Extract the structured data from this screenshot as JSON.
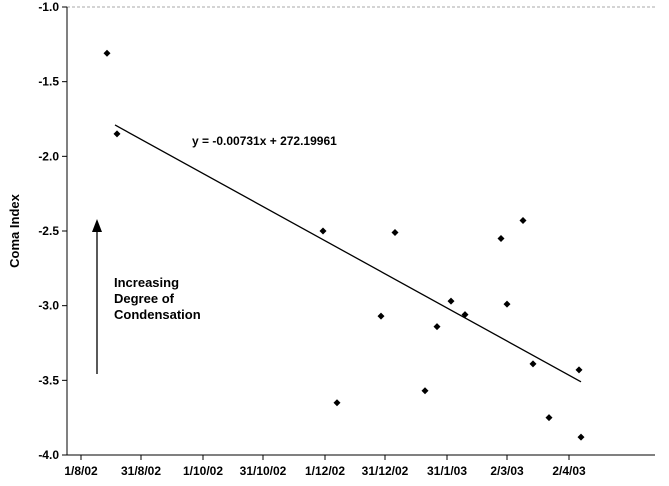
{
  "chart_data": {
    "type": "scatter",
    "ylabel": "Coma Index",
    "xlabel": "",
    "title": "",
    "ylim": [
      -4.0,
      -1.0
    ],
    "y_ticks": [
      "-1.0",
      "-1.5",
      "-2.0",
      "-2.5",
      "-3.0",
      "-3.5",
      "-4.0"
    ],
    "x_tick_labels": [
      "1/8/02",
      "31/8/02",
      "1/10/02",
      "31/10/02",
      "1/12/02",
      "31/12/02",
      "31/1/03",
      "2/3/03",
      "2/4/03"
    ],
    "grid": false,
    "points": [
      {
        "x": "2002-08-14",
        "y": -1.31
      },
      {
        "x": "2002-08-19",
        "y": -1.85
      },
      {
        "x": "2002-11-30",
        "y": -2.5
      },
      {
        "x": "2002-12-07",
        "y": -3.65
      },
      {
        "x": "2002-12-29",
        "y": -3.07
      },
      {
        "x": "2003-01-05",
        "y": -2.51
      },
      {
        "x": "2003-01-20",
        "y": -3.57
      },
      {
        "x": "2003-01-26",
        "y": -3.14
      },
      {
        "x": "2003-02-02",
        "y": -2.97
      },
      {
        "x": "2003-02-09",
        "y": -3.06
      },
      {
        "x": "2003-02-27",
        "y": -2.55
      },
      {
        "x": "2003-03-02",
        "y": -2.99
      },
      {
        "x": "2003-03-10",
        "y": -2.43
      },
      {
        "x": "2003-03-15",
        "y": -3.39
      },
      {
        "x": "2003-03-23",
        "y": -3.75
      },
      {
        "x": "2003-04-07",
        "y": -3.43
      },
      {
        "x": "2003-04-08",
        "y": -3.88
      }
    ],
    "trendline": {
      "equation": "y = -0.00731x + 272.19961",
      "start": {
        "x": "2002-08-18",
        "y": -1.79
      },
      "end": {
        "x": "2003-04-08",
        "y": -3.51
      }
    },
    "annotation": {
      "lines": [
        "Increasing",
        "Degree of",
        "Condensation"
      ]
    }
  }
}
